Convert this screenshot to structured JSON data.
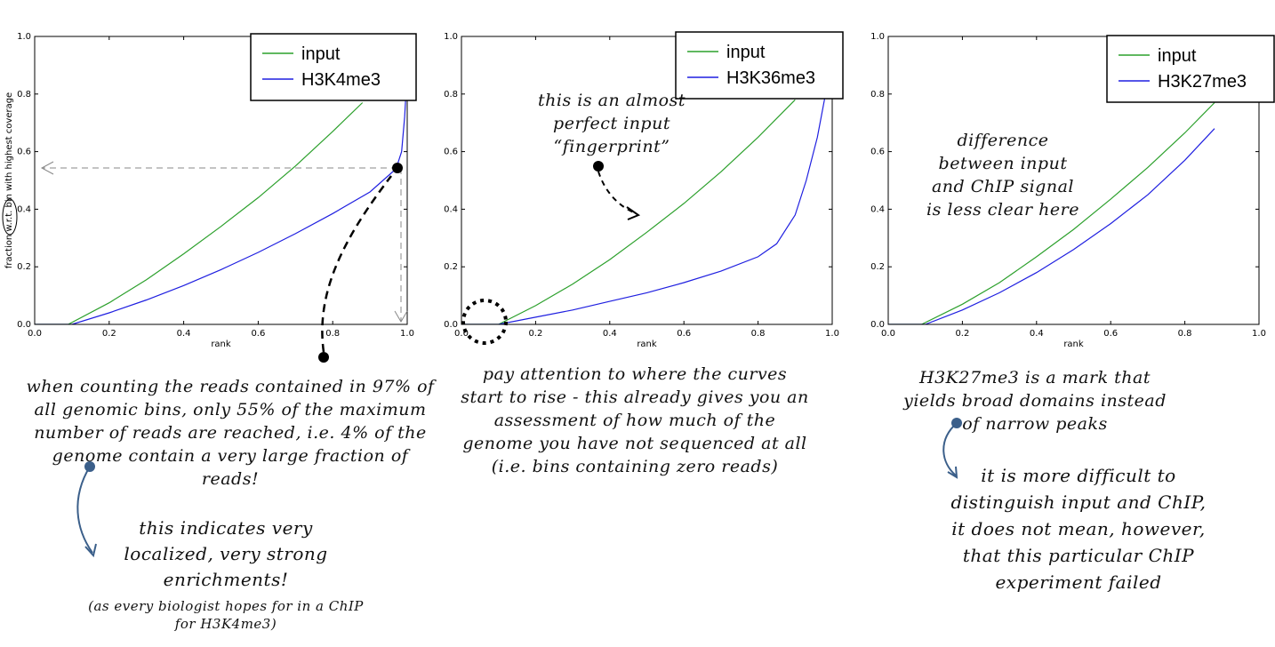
{
  "chart_data": [
    {
      "type": "line",
      "xlabel": "rank",
      "ylabel": "fraction w.r.t. bin with highest coverage",
      "xlim": [
        0.0,
        1.0
      ],
      "ylim": [
        0.0,
        1.0
      ],
      "xticks": [
        "0.0",
        "0.2",
        "0.4",
        "0.6",
        "0.8",
        "1.0"
      ],
      "yticks": [
        "0.0",
        "0.2",
        "0.4",
        "0.6",
        "0.8",
        "1.0"
      ],
      "legend_position": "top-right",
      "series": [
        {
          "name": "input",
          "color": "#2ca02c",
          "x": [
            0.0,
            0.09,
            0.2,
            0.3,
            0.4,
            0.5,
            0.6,
            0.7,
            0.8,
            0.88
          ],
          "y": [
            0.0,
            0.0,
            0.075,
            0.155,
            0.245,
            0.34,
            0.44,
            0.55,
            0.67,
            0.77
          ]
        },
        {
          "name": "H3K4me3",
          "color": "#1f1fe0",
          "x": [
            0.0,
            0.1,
            0.2,
            0.3,
            0.4,
            0.5,
            0.6,
            0.7,
            0.8,
            0.9,
            0.97,
            0.985,
            0.993,
            1.0
          ],
          "y": [
            0.0,
            0.0,
            0.04,
            0.085,
            0.135,
            0.19,
            0.25,
            0.315,
            0.385,
            0.46,
            0.54,
            0.6,
            0.72,
            0.88
          ]
        }
      ]
    },
    {
      "type": "line",
      "xlabel": "rank",
      "ylabel": "",
      "xlim": [
        0.0,
        1.0
      ],
      "ylim": [
        0.0,
        1.0
      ],
      "xticks": [
        "0.0",
        "0.2",
        "0.4",
        "0.6",
        "0.8",
        "1.0"
      ],
      "yticks": [
        "0.0",
        "0.2",
        "0.4",
        "0.6",
        "0.8",
        "1.0"
      ],
      "legend_position": "top-right",
      "series": [
        {
          "name": "input",
          "color": "#2ca02c",
          "x": [
            0.0,
            0.1,
            0.2,
            0.3,
            0.4,
            0.5,
            0.6,
            0.7,
            0.8,
            0.9
          ],
          "y": [
            0.0,
            0.0,
            0.065,
            0.14,
            0.225,
            0.32,
            0.42,
            0.53,
            0.65,
            0.78
          ]
        },
        {
          "name": "H3K36me3",
          "color": "#1f1fe0",
          "x": [
            0.0,
            0.1,
            0.2,
            0.3,
            0.4,
            0.5,
            0.6,
            0.7,
            0.8,
            0.85,
            0.9,
            0.93,
            0.96,
            0.985
          ],
          "y": [
            0.0,
            0.0,
            0.025,
            0.05,
            0.08,
            0.11,
            0.145,
            0.185,
            0.235,
            0.28,
            0.38,
            0.5,
            0.65,
            0.82
          ]
        }
      ]
    },
    {
      "type": "line",
      "xlabel": "rank",
      "ylabel": "",
      "xlim": [
        0.0,
        1.0
      ],
      "ylim": [
        0.0,
        1.0
      ],
      "xticks": [
        "0.0",
        "0.2",
        "0.4",
        "0.6",
        "0.8",
        "1.0"
      ],
      "yticks": [
        "0.0",
        "0.2",
        "0.4",
        "0.6",
        "0.8",
        "1.0"
      ],
      "legend_position": "top-right",
      "series": [
        {
          "name": "input",
          "color": "#2ca02c",
          "x": [
            0.0,
            0.09,
            0.2,
            0.3,
            0.4,
            0.5,
            0.6,
            0.7,
            0.8,
            0.88
          ],
          "y": [
            0.0,
            0.0,
            0.07,
            0.145,
            0.235,
            0.33,
            0.435,
            0.545,
            0.665,
            0.77
          ]
        },
        {
          "name": "H3K27me3",
          "color": "#1f1fe0",
          "x": [
            0.0,
            0.1,
            0.2,
            0.3,
            0.4,
            0.5,
            0.6,
            0.7,
            0.8,
            0.88
          ],
          "y": [
            0.0,
            0.0,
            0.05,
            0.11,
            0.18,
            0.26,
            0.35,
            0.45,
            0.57,
            0.68
          ]
        }
      ]
    }
  ],
  "annotations": {
    "p1_main": "when counting the reads contained in 97% of all genomic bins, only 55% of the maximum number of reads are reached, i.e. 4% of the genome contain a very large fraction of reads!",
    "p1_conclusion": "this indicates very localized, very strong enrichments!",
    "p1_aside": "(as every biologist hopes for in a ChIP for H3K4me3)",
    "p2_fingerprint": "this is an almost perfect input “fingerprint”",
    "p2_main": "pay attention to where the curves start to rise - this already gives you an assessment of how much of the genome you have not sequenced at all (i.e. bins containing zero reads)",
    "p3_inplot": "difference between input and ChIP signal is less clear here",
    "p3_main": "H3K27me3 is a mark that yields broad domains instead of narrow peaks",
    "p3_conclusion": "it is more difficult to distinguish input and ChIP, it does not mean, however, that this particular ChIP experiment failed"
  }
}
